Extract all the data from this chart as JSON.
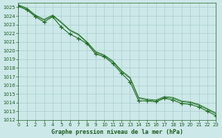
{
  "title": "Graphe pression niveau de la mer (hPa)",
  "background_color": "#cce8e8",
  "grid_color": "#aacccc",
  "line_color": "#1a6b1a",
  "text_color": "#1a5c1a",
  "xlim": [
    0,
    23
  ],
  "ylim": [
    1012,
    1025.5
  ],
  "yticks": [
    1012,
    1013,
    1014,
    1015,
    1016,
    1017,
    1018,
    1019,
    1020,
    1021,
    1022,
    1023,
    1024,
    1025
  ],
  "xticks": [
    0,
    1,
    2,
    3,
    4,
    5,
    6,
    7,
    8,
    9,
    10,
    11,
    12,
    13,
    14,
    15,
    16,
    17,
    18,
    19,
    20,
    21,
    22,
    23
  ],
  "series": [
    {
      "x": [
        0,
        1,
        2,
        3,
        4,
        5,
        6,
        7,
        8,
        9,
        10,
        11,
        12,
        13,
        14,
        15,
        16,
        17,
        18,
        19,
        20,
        21,
        22,
        23
      ],
      "y": [
        1025.1,
        1024.7,
        1023.9,
        1023.3,
        1023.9,
        1022.7,
        1021.9,
        1021.4,
        1020.8,
        1019.6,
        1019.3,
        1018.5,
        1017.4,
        1016.4,
        1014.2,
        1014.2,
        1014.1,
        1014.5,
        1014.3,
        1013.9,
        1013.8,
        1013.5,
        1013.0,
        1012.5
      ],
      "marker": true
    },
    {
      "x": [
        0,
        1,
        2,
        3,
        4,
        5,
        6,
        7,
        8,
        9,
        10,
        11,
        12,
        13,
        14,
        15,
        16,
        17,
        18,
        19,
        20,
        21,
        22,
        23
      ],
      "y": [
        1025.2,
        1024.8,
        1024.0,
        1023.5,
        1024.0,
        1023.2,
        1022.3,
        1021.8,
        1020.9,
        1019.8,
        1019.4,
        1018.7,
        1017.6,
        1016.8,
        1014.5,
        1014.3,
        1014.2,
        1014.6,
        1014.5,
        1014.1,
        1014.0,
        1013.7,
        1013.2,
        1012.7
      ],
      "marker": false
    },
    {
      "x": [
        0,
        1,
        2,
        3,
        4,
        5,
        6,
        7,
        8,
        9,
        10,
        11,
        12,
        13,
        14,
        15,
        16,
        17,
        18,
        19,
        20,
        21,
        22,
        23
      ],
      "y": [
        1025.3,
        1024.9,
        1024.1,
        1023.6,
        1024.1,
        1023.3,
        1022.4,
        1021.9,
        1021.0,
        1019.9,
        1019.5,
        1018.8,
        1017.7,
        1016.9,
        1014.6,
        1014.4,
        1014.3,
        1014.7,
        1014.6,
        1014.2,
        1014.1,
        1013.8,
        1013.3,
        1012.8
      ],
      "marker": false
    }
  ]
}
